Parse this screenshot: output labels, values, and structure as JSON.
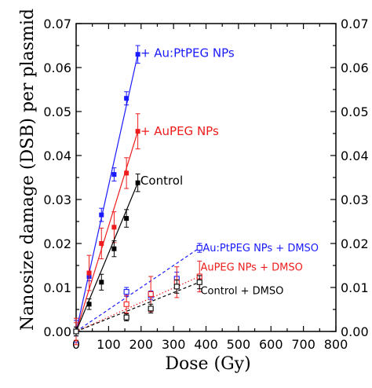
{
  "chart_data": {
    "type": "scatter",
    "xlabel": "Dose (Gy)",
    "ylabel": "Nanosize damage (DSB) per plasmid",
    "xlim": [
      0,
      800
    ],
    "ylim": [
      0,
      0.07
    ],
    "x_ticks": [
      0,
      100,
      200,
      300,
      400,
      500,
      600,
      700,
      800
    ],
    "x_tick_labels": [
      "0",
      "100",
      "200",
      "300",
      "400",
      "500",
      "600",
      "700",
      "800"
    ],
    "y_ticks": [
      0,
      0.01,
      0.02,
      0.03,
      0.04,
      0.05,
      0.06,
      0.07
    ],
    "y_tick_labels": [
      "0.00",
      "0.01",
      "0.02",
      "0.03",
      "0.04",
      "0.05",
      "0.06",
      "0.07"
    ],
    "grid": false,
    "series": [
      {
        "name": "+ Au:PtPEG NPs",
        "color": "#1a1aff",
        "marker": "filled-square",
        "line": "solid",
        "x": [
          0,
          40,
          78,
          117,
          155,
          190
        ],
        "y": [
          0.0,
          0.0125,
          0.0265,
          0.0357,
          0.053,
          0.063
        ],
        "err": [
          0.0025,
          0.001,
          0.0015,
          0.0015,
          0.0015,
          0.002
        ]
      },
      {
        "name": "+ AuPEG NPs",
        "color": "#ee1c1c",
        "marker": "filled-square",
        "line": "solid",
        "x": [
          0,
          40,
          78,
          117,
          155,
          190
        ],
        "y": [
          0.0,
          0.0133,
          0.02,
          0.0237,
          0.036,
          0.0455
        ],
        "err": [
          0.003,
          0.004,
          0.0035,
          0.0035,
          0.0035,
          0.004
        ]
      },
      {
        "name": "Control",
        "color": "#000000",
        "marker": "filled-square",
        "line": "solid",
        "x": [
          0,
          40,
          78,
          117,
          155,
          190
        ],
        "y": [
          0.0,
          0.0062,
          0.0112,
          0.0188,
          0.0257,
          0.0338
        ],
        "err": [
          0.001,
          0.0012,
          0.0018,
          0.0018,
          0.002,
          0.002
        ]
      },
      {
        "name": "Au:PtPEG NPs + DMSO",
        "color": "#1a1aff",
        "marker": "open-square",
        "line": "dashed",
        "x": [
          0,
          155,
          230,
          310,
          380
        ],
        "y": [
          0.0,
          0.009,
          0.0082,
          0.012,
          0.019
        ],
        "err": [
          0.001,
          0.001,
          0.001,
          0.0015,
          0.001
        ]
      },
      {
        "name": "AuPEG NPs + DMSO",
        "color": "#ee1c1c",
        "marker": "open-square",
        "line": "dotted",
        "x": [
          0,
          155,
          230,
          310,
          380
        ],
        "y": [
          0.0,
          0.0062,
          0.0085,
          0.0112,
          0.0125
        ],
        "err": [
          0.002,
          0.002,
          0.004,
          0.0035,
          0.0035
        ]
      },
      {
        "name": "Control + DMSO",
        "color": "#000000",
        "marker": "open-square",
        "line": "dashed",
        "x": [
          0,
          155,
          230,
          310,
          380
        ],
        "y": [
          0.0,
          0.0032,
          0.0052,
          0.0102,
          0.0112
        ],
        "err": [
          0.001,
          0.0008,
          0.001,
          0.0015,
          0.0015
        ]
      }
    ],
    "annotations": [
      {
        "text": "+ Au:PtPEG NPs",
        "series": 0,
        "x": 198,
        "y": 0.0633
      },
      {
        "text": "+ AuPEG NPs",
        "series": 1,
        "x": 198,
        "y": 0.0455
      },
      {
        "text": "Control",
        "series": 2,
        "x": 198,
        "y": 0.0343
      },
      {
        "text": "Au:PtPEG NPs + DMSO",
        "series": 3,
        "x": 390,
        "y": 0.0191
      },
      {
        "text": "AuPEG NPs + DMSO",
        "series": 4,
        "x": 383,
        "y": 0.0147
      },
      {
        "text": "Control + DMSO",
        "series": 5,
        "x": 383,
        "y": 0.0094
      }
    ]
  }
}
